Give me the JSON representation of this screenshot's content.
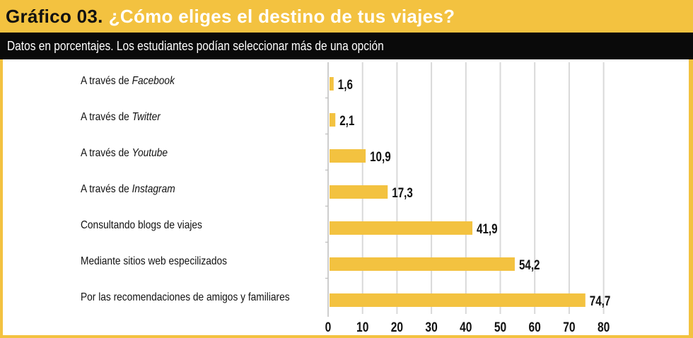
{
  "header": {
    "title_lead": "Gráfico 03.",
    "title_rest": "¿Cómo eliges el destino de tus viajes?",
    "subtitle": "Datos en porcentajes. Los estudiantes podían seleccionar más de una opción"
  },
  "colors": {
    "accent": "#f3c240",
    "bar": "#f3c240",
    "subtitle_bg": "#0a0a0a",
    "grid": "#d9d9d9"
  },
  "chart_data": {
    "type": "bar",
    "orientation": "horizontal",
    "categories": [
      {
        "prefix": "A través de ",
        "emph": "Facebook"
      },
      {
        "prefix": "A través de ",
        "emph": "Twitter"
      },
      {
        "prefix": "A través de ",
        "emph": "Youtube"
      },
      {
        "prefix": "A través de ",
        "emph": "Instagram"
      },
      {
        "prefix": "Consultando blogs de viajes",
        "emph": ""
      },
      {
        "prefix": "Mediante sitios web especilizados",
        "emph": ""
      },
      {
        "prefix": "Por las recomendaciones de amigos y familiares",
        "emph": ""
      }
    ],
    "values": [
      1.6,
      2.1,
      10.9,
      17.3,
      41.9,
      54.2,
      74.7
    ],
    "value_labels": [
      "1,6",
      "2,1",
      "10,9",
      "17,3",
      "41,9",
      "54,2",
      "74,7"
    ],
    "xlim": [
      0,
      80
    ],
    "xticks": [
      0,
      10,
      20,
      30,
      40,
      50,
      60,
      70,
      80
    ],
    "grid": true
  }
}
